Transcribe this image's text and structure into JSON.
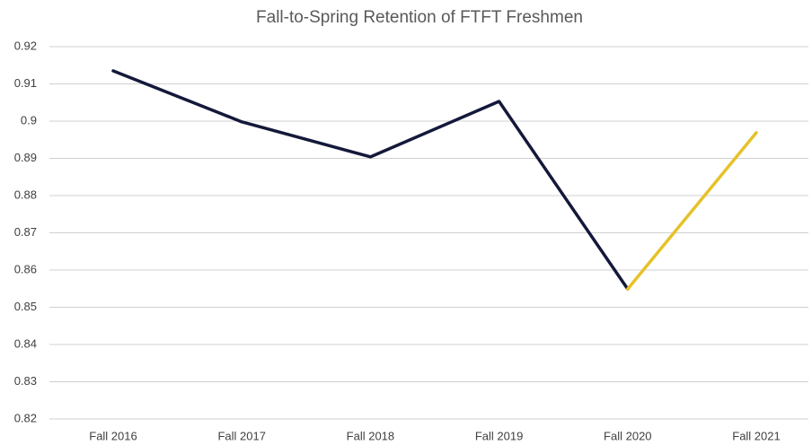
{
  "chart_data": {
    "type": "line",
    "title": "Fall-to-Spring Retention of FTFT Freshmen",
    "categories": [
      "Fall 2016",
      "Fall 2017",
      "Fall 2018",
      "Fall 2019",
      "Fall 2020",
      "Fall 2021"
    ],
    "series": [
      {
        "color": "#14193a",
        "values": [
          0.9135,
          0.8998,
          0.8904,
          0.9053,
          0.8549,
          null
        ]
      },
      {
        "color": "#e6c229",
        "values": [
          null,
          null,
          null,
          null,
          0.8549,
          0.8969
        ]
      }
    ],
    "ylim": [
      0.82,
      0.92
    ],
    "yticks": [
      0.82,
      0.83,
      0.84,
      0.85,
      0.86,
      0.87,
      0.88,
      0.89,
      0.9,
      0.91,
      0.92
    ],
    "grid": true
  }
}
